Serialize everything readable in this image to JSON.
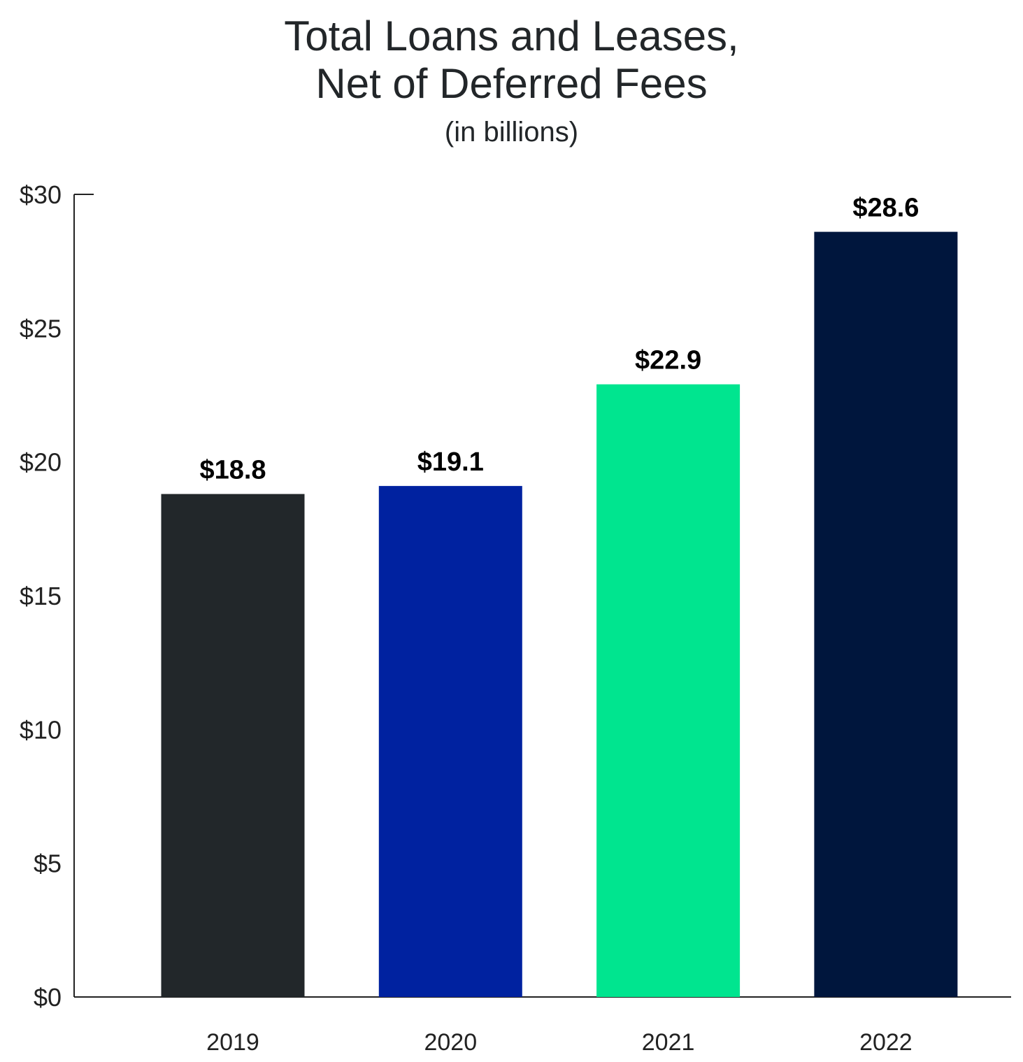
{
  "chart_data": {
    "type": "bar",
    "title_lines": [
      "Total Loans and Leases,",
      "Net of Deferred Fees"
    ],
    "subtitle": "(in billions)",
    "categories": [
      "2019",
      "2020",
      "2021",
      "2022"
    ],
    "values": [
      18.8,
      19.1,
      22.9,
      28.6
    ],
    "value_labels": [
      "$18.8",
      "$19.1",
      "$22.9",
      "$28.6"
    ],
    "colors": [
      "#22272a",
      "#0022a0",
      "#00e58f",
      "#00163d"
    ],
    "y_ticks": [
      0,
      5,
      10,
      15,
      20,
      25,
      30
    ],
    "y_tick_labels": [
      "$0",
      "$5",
      "$10",
      "$15",
      "$20",
      "$25",
      "$30"
    ],
    "ylim": [
      0,
      30
    ],
    "xlabel": "",
    "ylabel": "",
    "grid": false,
    "legend": "none"
  }
}
